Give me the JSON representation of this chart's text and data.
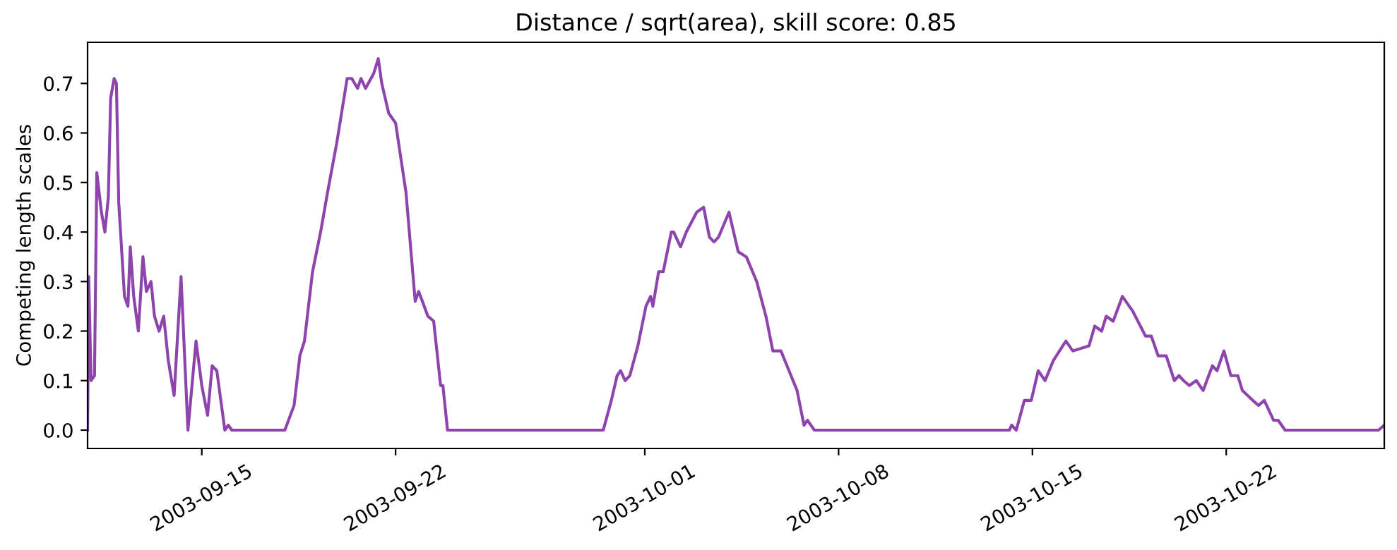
{
  "chart_data": {
    "type": "line",
    "title": "Distance / sqrt(area), skill score: 0.85",
    "ylabel": "Competing length scales",
    "xlim": [
      "2003-09-10T21:00",
      "2003-10-27T17:00"
    ],
    "xticks": [
      "2003-09-15",
      "2003-09-22",
      "2003-10-01",
      "2003-10-08",
      "2003-10-15",
      "2003-10-22"
    ],
    "ylim": [
      -0.037,
      0.783
    ],
    "yticks": [
      {
        "value": 0,
        "label": "0.0"
      },
      {
        "value": 0.1,
        "label": "0.1"
      },
      {
        "value": 0.2,
        "label": "0.2"
      },
      {
        "value": 0.3,
        "label": "0.3"
      },
      {
        "value": 0.4,
        "label": "0.4"
      },
      {
        "value": 0.5,
        "label": "0.5"
      },
      {
        "value": 0.6,
        "label": "0.6"
      },
      {
        "value": 0.7,
        "label": "0.7"
      }
    ],
    "grid": false,
    "marker": "none",
    "line_style": "solid",
    "x": [
      "2003-09-10T21:00",
      "2003-09-10T22:00",
      "2003-09-11T00:00",
      "2003-09-11T03:00",
      "2003-09-11T05:00",
      "2003-09-11T09:00",
      "2003-09-11T12:00",
      "2003-09-11T15:00",
      "2003-09-11T17:00",
      "2003-09-11T20:00",
      "2003-09-11T22:00",
      "2003-09-12T00:00",
      "2003-09-12T05:00",
      "2003-09-12T08:00",
      "2003-09-12T10:00",
      "2003-09-12T13:00",
      "2003-09-12T17:00",
      "2003-09-12T21:00",
      "2003-09-13T00:00",
      "2003-09-13T04:00",
      "2003-09-13T07:00",
      "2003-09-13T11:00",
      "2003-09-13T15:00",
      "2003-09-13T19:00",
      "2003-09-14T00:00",
      "2003-09-14T06:00",
      "2003-09-14T12:00",
      "2003-09-14T19:00",
      "2003-09-15T00:00",
      "2003-09-15T05:00",
      "2003-09-15T09:00",
      "2003-09-15T13:00",
      "2003-09-15T20:00",
      "2003-09-15T23:00",
      "2003-09-16T02:00",
      "2003-09-18T00:00",
      "2003-09-18T08:00",
      "2003-09-18T13:00",
      "2003-09-18T17:00",
      "2003-09-19T00:00",
      "2003-09-19T07:00",
      "2003-09-19T13:00",
      "2003-09-19T21:00",
      "2003-09-20T06:00",
      "2003-09-20T10:00",
      "2003-09-20T15:00",
      "2003-09-20T18:00",
      "2003-09-20T22:00",
      "2003-09-21T05:00",
      "2003-09-21T09:00",
      "2003-09-21T12:00",
      "2003-09-21T18:00",
      "2003-09-22T00:00",
      "2003-09-22T09:00",
      "2003-09-22T17:00",
      "2003-09-22T20:00",
      "2003-09-23T04:00",
      "2003-09-23T09:00",
      "2003-09-23T15:00",
      "2003-09-23T17:00",
      "2003-09-23T21:00",
      "2003-09-29T12:00",
      "2003-09-29T19:00",
      "2003-09-30T00:00",
      "2003-09-30T03:00",
      "2003-09-30T07:00",
      "2003-09-30T11:00",
      "2003-09-30T18:00",
      "2003-10-01T01:00",
      "2003-10-01T05:00",
      "2003-10-01T07:00",
      "2003-10-01T12:00",
      "2003-10-01T16:00",
      "2003-10-01T23:00",
      "2003-10-02T01:00",
      "2003-10-02T07:00",
      "2003-10-02T12:00",
      "2003-10-02T21:00",
      "2003-10-03T03:00",
      "2003-10-03T08:00",
      "2003-10-03T12:00",
      "2003-10-03T16:00",
      "2003-10-04T01:00",
      "2003-10-04T09:00",
      "2003-10-04T16:00",
      "2003-10-05T01:00",
      "2003-10-05T09:00",
      "2003-10-05T15:00",
      "2003-10-05T22:00",
      "2003-10-06T05:00",
      "2003-10-06T12:00",
      "2003-10-06T18:00",
      "2003-10-06T21:00",
      "2003-10-07T03:00",
      "2003-10-14T04:00",
      "2003-10-14T06:00",
      "2003-10-14T10:00",
      "2003-10-14T17:00",
      "2003-10-14T23:00",
      "2003-10-15T05:00",
      "2003-10-15T11:00",
      "2003-10-15T18:00",
      "2003-10-16T05:00",
      "2003-10-16T11:00",
      "2003-10-17T01:00",
      "2003-10-17T06:00",
      "2003-10-17T12:00",
      "2003-10-17T16:00",
      "2003-10-17T22:00",
      "2003-10-18T06:00",
      "2003-10-18T15:00",
      "2003-10-19T02:00",
      "2003-10-19T07:00",
      "2003-10-19T13:00",
      "2003-10-19T20:00",
      "2003-10-20T03:00",
      "2003-10-20T07:00",
      "2003-10-20T11:00",
      "2003-10-20T16:00",
      "2003-10-20T22:00",
      "2003-10-21T04:00",
      "2003-10-21T12:00",
      "2003-10-21T16:00",
      "2003-10-21T22:00",
      "2003-10-22T04:00",
      "2003-10-22T10:00",
      "2003-10-22T14:00",
      "2003-10-22T23:00",
      "2003-10-23T04:00",
      "2003-10-23T09:00",
      "2003-10-23T17:00",
      "2003-10-23T21:00",
      "2003-10-24T03:00",
      "2003-10-27T12:00",
      "2003-10-27T17:00"
    ],
    "series": [
      {
        "color": "#8e44ad",
        "values": [
          0,
          0.31,
          0.1,
          0.11,
          0.52,
          0.44,
          0.4,
          0.47,
          0.67,
          0.71,
          0.7,
          0.46,
          0.27,
          0.25,
          0.37,
          0.27,
          0.2,
          0.35,
          0.28,
          0.3,
          0.23,
          0.2,
          0.23,
          0.14,
          0.07,
          0.31,
          0,
          0.18,
          0.09,
          0.03,
          0.13,
          0.12,
          0,
          0.01,
          0,
          0,
          0.05,
          0.15,
          0.18,
          0.32,
          0.4,
          0.48,
          0.58,
          0.71,
          0.71,
          0.69,
          0.71,
          0.69,
          0.72,
          0.75,
          0.7,
          0.64,
          0.62,
          0.48,
          0.26,
          0.28,
          0.23,
          0.22,
          0.09,
          0.09,
          0,
          0,
          0.06,
          0.11,
          0.12,
          0.1,
          0.11,
          0.17,
          0.25,
          0.27,
          0.25,
          0.32,
          0.32,
          0.4,
          0.4,
          0.37,
          0.4,
          0.44,
          0.45,
          0.39,
          0.38,
          0.39,
          0.44,
          0.36,
          0.35,
          0.3,
          0.23,
          0.16,
          0.16,
          0.12,
          0.08,
          0.01,
          0.02,
          0,
          0,
          0.01,
          0,
          0.06,
          0.06,
          0.12,
          0.1,
          0.14,
          0.18,
          0.16,
          0.17,
          0.21,
          0.2,
          0.23,
          0.22,
          0.27,
          0.24,
          0.19,
          0.19,
          0.15,
          0.15,
          0.1,
          0.11,
          0.1,
          0.09,
          0.1,
          0.08,
          0.13,
          0.12,
          0.16,
          0.11,
          0.11,
          0.08,
          0.06,
          0.05,
          0.06,
          0.02,
          0.02,
          0,
          0,
          0.01
        ]
      }
    ]
  }
}
